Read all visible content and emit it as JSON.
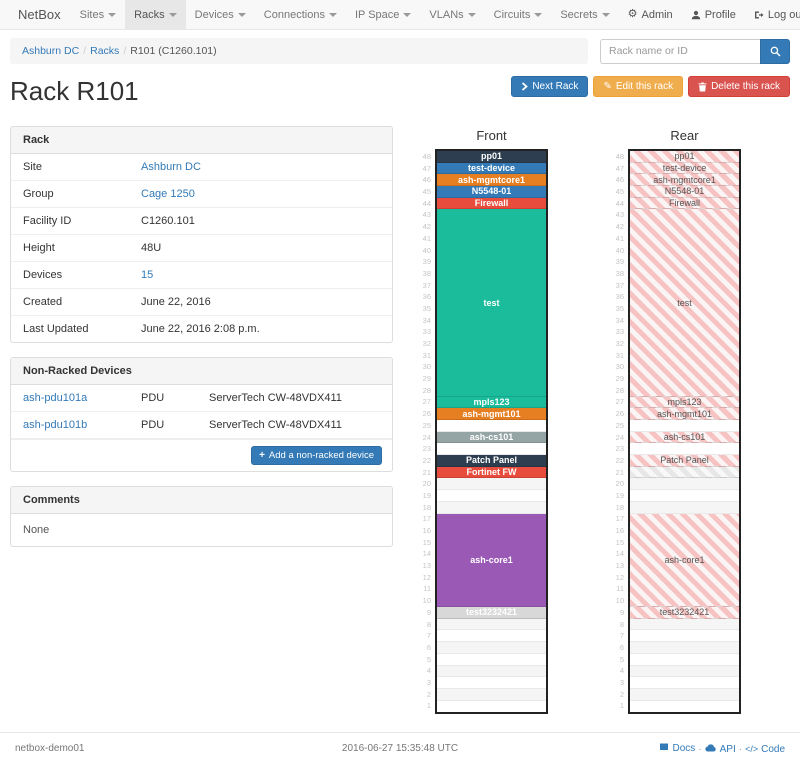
{
  "navbar": {
    "brand": "NetBox",
    "items": [
      {
        "label": "Sites"
      },
      {
        "label": "Racks",
        "active": true
      },
      {
        "label": "Devices"
      },
      {
        "label": "Connections"
      },
      {
        "label": "IP Space"
      },
      {
        "label": "VLANs"
      },
      {
        "label": "Circuits"
      },
      {
        "label": "Secrets"
      }
    ],
    "right": [
      {
        "label": "Admin",
        "icon": "gear-icon"
      },
      {
        "label": "Profile",
        "icon": "user-icon"
      },
      {
        "label": "Log out",
        "icon": "logout-icon"
      }
    ]
  },
  "breadcrumb": {
    "items": [
      "Ashburn DC",
      "Racks",
      "R101 (C1260.101)"
    ]
  },
  "search": {
    "placeholder": "Rack name or ID"
  },
  "page": {
    "title": "Rack R101"
  },
  "actions": {
    "next": "Next Rack",
    "edit": "Edit this rack",
    "delete": "Delete this rack"
  },
  "rack_panel": {
    "title": "Rack",
    "rows": [
      {
        "label": "Site",
        "value": "Ashburn DC",
        "link": true
      },
      {
        "label": "Group",
        "value": "Cage 1250",
        "link": true
      },
      {
        "label": "Facility ID",
        "value": "C1260.101",
        "link": false
      },
      {
        "label": "Height",
        "value": "48U",
        "link": false
      },
      {
        "label": "Devices",
        "value": "15",
        "link": true
      },
      {
        "label": "Created",
        "value": "June 22, 2016",
        "link": false
      },
      {
        "label": "Last Updated",
        "value": "June 22, 2016 2:08 p.m.",
        "link": false
      }
    ]
  },
  "non_racked": {
    "title": "Non-Racked Devices",
    "rows": [
      {
        "name": "ash-pdu101a",
        "role": "PDU",
        "model": "ServerTech CW-48VDX411"
      },
      {
        "name": "ash-pdu101b",
        "role": "PDU",
        "model": "ServerTech CW-48VDX411"
      }
    ],
    "add_label": "Add a non-racked device"
  },
  "comments": {
    "title": "Comments",
    "body": "None"
  },
  "elevations": {
    "front_title": "Front",
    "rear_title": "Rear",
    "units": 48,
    "slots": [
      {
        "label": "pp01",
        "u": 1,
        "color": "#2c3e50"
      },
      {
        "label": "test-device",
        "u": 1,
        "color": "#337ab7"
      },
      {
        "label": "ash-mgmtcore1",
        "u": 1,
        "color": "#e67e22"
      },
      {
        "label": "N5548-01",
        "u": 1,
        "color": "#337ab7"
      },
      {
        "label": "Firewall",
        "u": 1,
        "color": "#e74c3c"
      },
      {
        "label": "test",
        "u": 16,
        "color": "#1abc9c"
      },
      {
        "label": "mpls123",
        "u": 1,
        "color": "#1abc9c"
      },
      {
        "label": "ash-mgmt101",
        "u": 1,
        "color": "#e67e22"
      },
      {
        "empty": true,
        "u": 1
      },
      {
        "label": "ash-cs101",
        "u": 1,
        "color": "#95a5a6"
      },
      {
        "empty": true,
        "u": 1
      },
      {
        "label": "Patch Panel",
        "u": 1,
        "color": "#2c3e50"
      },
      {
        "label": "Fortinet FW",
        "u": 1,
        "color": "#e74c3c",
        "rear": "gray-blank"
      },
      {
        "empty": true,
        "u": 3
      },
      {
        "label": "ash-core1",
        "u": 8,
        "color": "#9b59b6"
      },
      {
        "label": "test3232421",
        "u": 1,
        "color": "#d8d8d8",
        "text": "#fff"
      },
      {
        "empty": true,
        "u": 8
      }
    ],
    "rear_text_color": "#555"
  },
  "footer": {
    "left": "netbox-demo01",
    "center": "2016-06-27 15:35:48 UTC",
    "links": [
      {
        "label": "Docs",
        "icon": "book-icon"
      },
      {
        "label": "API",
        "icon": "cloud-icon"
      },
      {
        "label": "Code",
        "icon": "code-icon"
      }
    ]
  }
}
